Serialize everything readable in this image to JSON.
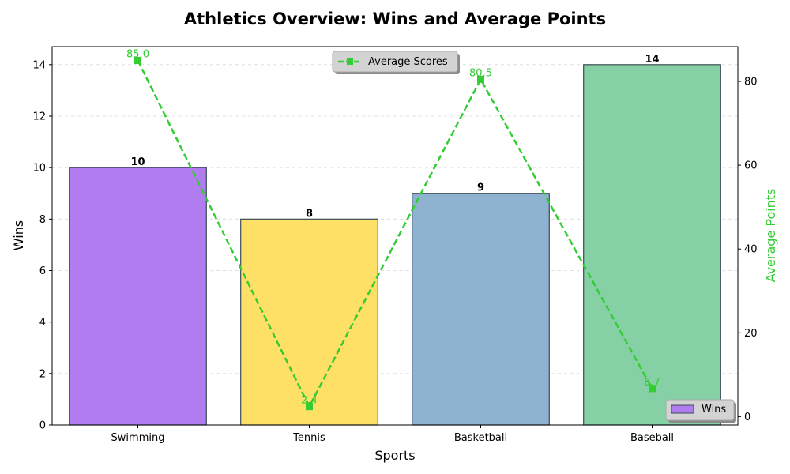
{
  "chart_data": {
    "type": "bar",
    "title": "Athletics Overview: Wins and Average Points",
    "xlabel": "Sports",
    "ylabel": "Wins",
    "y2label": "Average Points",
    "categories": [
      "Swimming",
      "Tennis",
      "Basketball",
      "Baseball"
    ],
    "ylim": [
      0,
      14.7
    ],
    "y2lim": [
      -2,
      88.3
    ],
    "yticks": [
      0,
      2,
      4,
      6,
      8,
      10,
      12,
      14
    ],
    "y2ticks": [
      0,
      20,
      40,
      60,
      80
    ],
    "grid": true,
    "series": [
      {
        "name": "Wins",
        "type": "bar",
        "axis": "left",
        "values": [
          10,
          8,
          9,
          14
        ],
        "colors": [
          "#b07cef",
          "#ffe066",
          "#8fb2d1",
          "#86d0a5"
        ],
        "edge_color": "#3a4a55",
        "labels": [
          "10",
          "8",
          "9",
          "14"
        ]
      },
      {
        "name": "Average Scores",
        "type": "line",
        "axis": "right",
        "values": [
          85.0,
          2.4,
          80.5,
          6.7
        ],
        "labels": [
          "85.0",
          "2.4",
          "80.5",
          "6.7"
        ],
        "color": "#33cc33",
        "style": "dashed",
        "marker": "square"
      }
    ],
    "legends": [
      {
        "entry": "Average Scores",
        "placement": "top-center"
      },
      {
        "entry": "Wins",
        "placement": "bottom-right"
      }
    ]
  }
}
